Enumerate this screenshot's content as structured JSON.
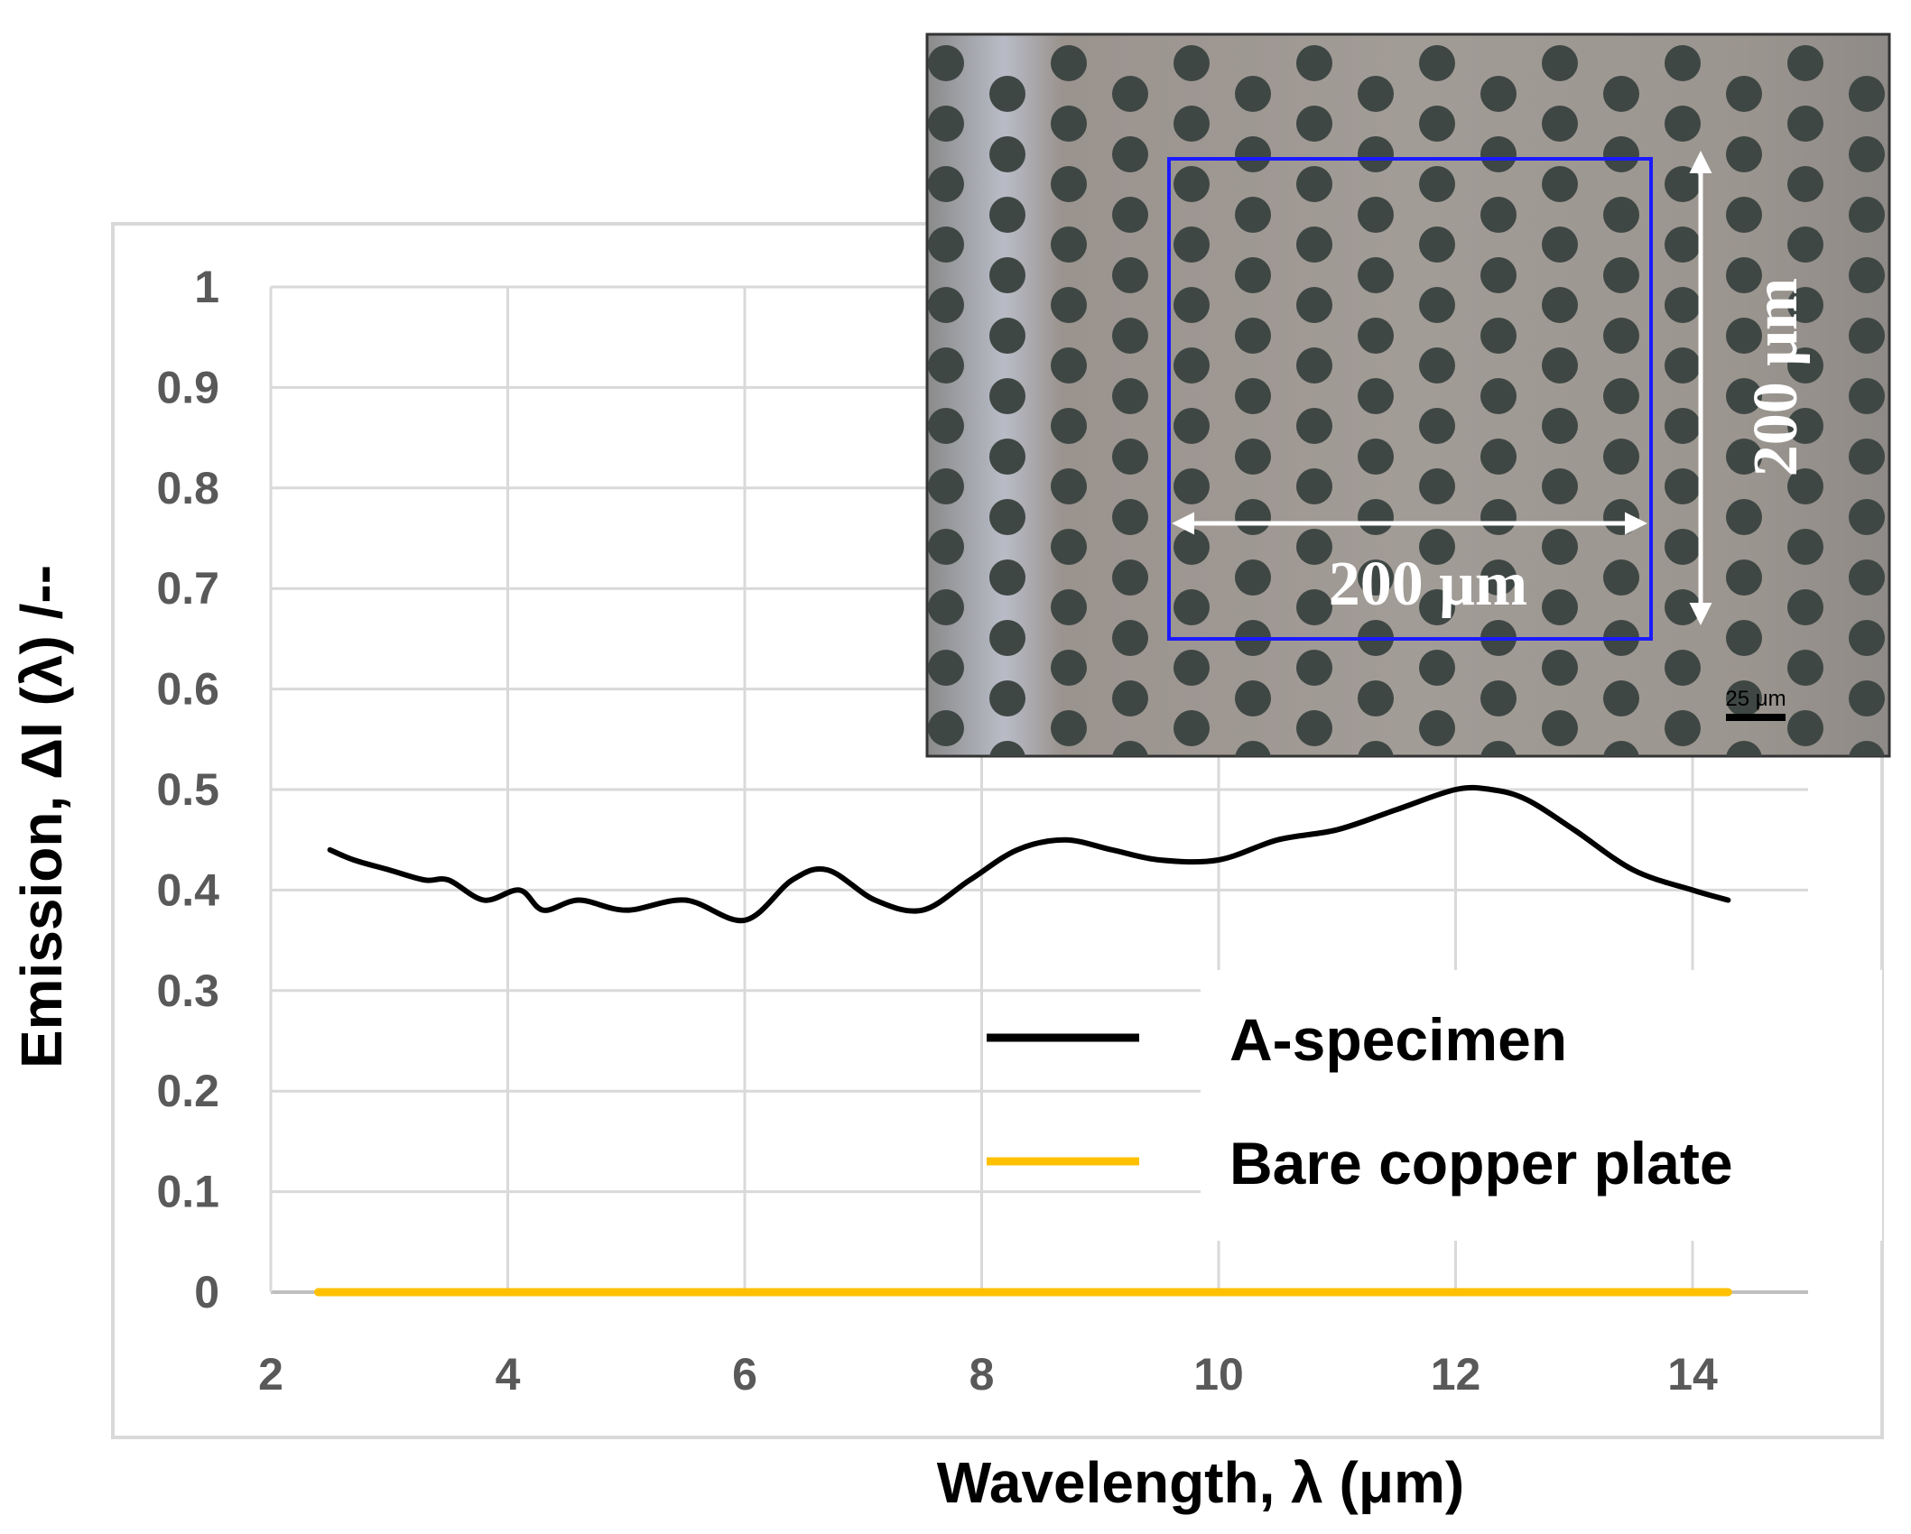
{
  "chart_data": {
    "type": "line",
    "title": "",
    "xlabel": "Wavelength, λ (μm)",
    "ylabel": "Emission, ΔI (λ) /--",
    "xlim": [
      2,
      14.5
    ],
    "ylim": [
      0,
      1
    ],
    "x_ticks": [
      2,
      4,
      6,
      8,
      10,
      12,
      14
    ],
    "y_ticks": [
      0,
      0.1,
      0.2,
      0.3,
      0.4,
      0.5,
      0.6,
      0.7,
      0.8,
      0.9,
      1
    ],
    "x_tick_labels": [
      "2",
      "4",
      "6",
      "8",
      "10",
      "12",
      "14"
    ],
    "y_tick_labels": [
      "0",
      "0.1",
      "0.2",
      "0.3",
      "0.4",
      "0.5",
      "0.6",
      "0.7",
      "0.8",
      "0.9",
      "1"
    ],
    "grid": true,
    "legend_position": "bottom-right",
    "series": [
      {
        "name": "A-specimen",
        "color": "#000000",
        "x": [
          2.5,
          2.7,
          3.0,
          3.3,
          3.5,
          3.8,
          4.1,
          4.3,
          4.6,
          5.0,
          5.5,
          6.0,
          6.4,
          6.7,
          7.1,
          7.5,
          7.9,
          8.3,
          8.7,
          9.1,
          9.5,
          10.0,
          10.5,
          11.0,
          11.5,
          12.0,
          12.3,
          12.6,
          13.0,
          13.5,
          14.0,
          14.3
        ],
        "values": [
          0.44,
          0.43,
          0.42,
          0.41,
          0.41,
          0.39,
          0.4,
          0.38,
          0.39,
          0.38,
          0.39,
          0.37,
          0.41,
          0.42,
          0.39,
          0.38,
          0.41,
          0.44,
          0.45,
          0.44,
          0.43,
          0.43,
          0.45,
          0.46,
          0.48,
          0.5,
          0.5,
          0.49,
          0.46,
          0.42,
          0.4,
          0.39
        ]
      },
      {
        "name": "Bare copper plate",
        "color": "#FFC000",
        "x": [
          2.4,
          14.3
        ],
        "values": [
          0,
          0
        ]
      }
    ]
  },
  "inset": {
    "horizontal_dimension": "200 μm",
    "vertical_dimension": "200 μm",
    "scale_bar_label": "25 μm",
    "box_color": "#1a1aff"
  }
}
